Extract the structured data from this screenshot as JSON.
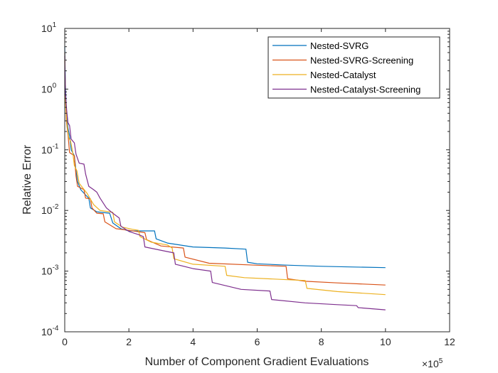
{
  "chart_data": {
    "type": "line",
    "title": "",
    "xlabel": "Number of Component Gradient Evaluations",
    "ylabel": "Relative Error",
    "x_multiplier": "×10",
    "x_multiplier_exp": "5",
    "xlim": [
      0,
      1200000
    ],
    "ylim": [
      0.0001,
      10
    ],
    "yscale": "log",
    "x_ticks": [
      {
        "value": 0,
        "label": "0"
      },
      {
        "value": 200000,
        "label": "2"
      },
      {
        "value": 400000,
        "label": "4"
      },
      {
        "value": 600000,
        "label": "6"
      },
      {
        "value": 800000,
        "label": "8"
      },
      {
        "value": 1000000,
        "label": "10"
      },
      {
        "value": 1200000,
        "label": "12"
      }
    ],
    "y_ticks": [
      {
        "value": 0.0001,
        "base": "10",
        "exp": "-4"
      },
      {
        "value": 0.001,
        "base": "10",
        "exp": "-3"
      },
      {
        "value": 0.01,
        "base": "10",
        "exp": "-2"
      },
      {
        "value": 0.1,
        "base": "10",
        "exp": "-1"
      },
      {
        "value": 1,
        "base": "10",
        "exp": "0"
      },
      {
        "value": 10,
        "base": "10",
        "exp": "1"
      }
    ],
    "grid": false,
    "legend_position": "top-right",
    "series": [
      {
        "name": "Nested-SVRG",
        "color": "#0072BD",
        "points": [
          [
            0,
            5.0
          ],
          [
            2000,
            1.2
          ],
          [
            5000,
            0.45
          ],
          [
            10000,
            0.23
          ],
          [
            15000,
            0.17
          ],
          [
            20000,
            0.1
          ],
          [
            30000,
            0.08
          ],
          [
            35000,
            0.045
          ],
          [
            40000,
            0.03
          ],
          [
            50000,
            0.022
          ],
          [
            65000,
            0.018
          ],
          [
            75000,
            0.016
          ],
          [
            80000,
            0.011
          ],
          [
            100000,
            0.0095
          ],
          [
            140000,
            0.009
          ],
          [
            150000,
            0.0062
          ],
          [
            175000,
            0.005
          ],
          [
            200000,
            0.0046
          ],
          [
            280000,
            0.0046
          ],
          [
            285000,
            0.0034
          ],
          [
            320000,
            0.0029
          ],
          [
            400000,
            0.0025
          ],
          [
            500000,
            0.0024
          ],
          [
            565000,
            0.0023
          ],
          [
            570000,
            0.0014
          ],
          [
            600000,
            0.00132
          ],
          [
            700000,
            0.00125
          ],
          [
            800000,
            0.0012
          ],
          [
            900000,
            0.00117
          ],
          [
            1000000,
            0.00114
          ]
        ]
      },
      {
        "name": "Nested-SVRG-Screening",
        "color": "#D95319",
        "points": [
          [
            0,
            4.0
          ],
          [
            2000,
            0.8
          ],
          [
            5000,
            0.3
          ],
          [
            10000,
            0.18
          ],
          [
            15000,
            0.09
          ],
          [
            30000,
            0.08
          ],
          [
            35000,
            0.037
          ],
          [
            40000,
            0.025
          ],
          [
            60000,
            0.022
          ],
          [
            65000,
            0.016
          ],
          [
            80000,
            0.0155
          ],
          [
            85000,
            0.011
          ],
          [
            100000,
            0.009
          ],
          [
            120000,
            0.0088
          ],
          [
            125000,
            0.0065
          ],
          [
            160000,
            0.005
          ],
          [
            200000,
            0.0047
          ],
          [
            250000,
            0.0043
          ],
          [
            255000,
            0.0033
          ],
          [
            300000,
            0.0026
          ],
          [
            370000,
            0.0024
          ],
          [
            375000,
            0.0017
          ],
          [
            450000,
            0.00135
          ],
          [
            600000,
            0.00125
          ],
          [
            690000,
            0.0012
          ],
          [
            695000,
            0.00075
          ],
          [
            750000,
            0.00068
          ],
          [
            850000,
            0.00064
          ],
          [
            1000000,
            0.00059
          ]
        ]
      },
      {
        "name": "Nested-Catalyst",
        "color": "#EDB120",
        "points": [
          [
            0,
            3.0
          ],
          [
            2000,
            0.7
          ],
          [
            6000,
            0.3
          ],
          [
            12000,
            0.16
          ],
          [
            18000,
            0.14
          ],
          [
            25000,
            0.09
          ],
          [
            30000,
            0.055
          ],
          [
            38000,
            0.045
          ],
          [
            45000,
            0.028
          ],
          [
            55000,
            0.024
          ],
          [
            70000,
            0.019
          ],
          [
            78000,
            0.016
          ],
          [
            90000,
            0.0125
          ],
          [
            110000,
            0.01
          ],
          [
            150000,
            0.0093
          ],
          [
            155000,
            0.0065
          ],
          [
            180000,
            0.0053
          ],
          [
            210000,
            0.0049
          ],
          [
            230000,
            0.0047
          ],
          [
            235000,
            0.0037
          ],
          [
            270000,
            0.003
          ],
          [
            320000,
            0.0027
          ],
          [
            335000,
            0.0024
          ],
          [
            340000,
            0.0016
          ],
          [
            400000,
            0.0013
          ],
          [
            500000,
            0.0012
          ],
          [
            505000,
            0.00085
          ],
          [
            560000,
            0.00078
          ],
          [
            700000,
            0.00072
          ],
          [
            750000,
            0.0007
          ],
          [
            755000,
            0.00052
          ],
          [
            850000,
            0.00046
          ],
          [
            1000000,
            0.00041
          ]
        ]
      },
      {
        "name": "Nested-Catalyst-Screening",
        "color": "#7E2F8E",
        "points": [
          [
            0,
            3.5
          ],
          [
            2000,
            0.9
          ],
          [
            6000,
            0.45
          ],
          [
            10000,
            0.28
          ],
          [
            15000,
            0.25
          ],
          [
            20000,
            0.15
          ],
          [
            30000,
            0.13
          ],
          [
            35000,
            0.085
          ],
          [
            45000,
            0.06
          ],
          [
            60000,
            0.058
          ],
          [
            65000,
            0.04
          ],
          [
            75000,
            0.025
          ],
          [
            90000,
            0.022
          ],
          [
            100000,
            0.02
          ],
          [
            110000,
            0.016
          ],
          [
            130000,
            0.011
          ],
          [
            150000,
            0.009
          ],
          [
            170000,
            0.0075
          ],
          [
            175000,
            0.0055
          ],
          [
            200000,
            0.0045
          ],
          [
            230000,
            0.004
          ],
          [
            245000,
            0.0037
          ],
          [
            250000,
            0.0025
          ],
          [
            320000,
            0.0021
          ],
          [
            340000,
            0.002
          ],
          [
            345000,
            0.0013
          ],
          [
            400000,
            0.0011
          ],
          [
            455000,
            0.001
          ],
          [
            460000,
            0.00065
          ],
          [
            550000,
            0.0005
          ],
          [
            640000,
            0.00047
          ],
          [
            645000,
            0.00034
          ],
          [
            750000,
            0.0003
          ],
          [
            850000,
            0.00028
          ],
          [
            910000,
            0.00027
          ],
          [
            915000,
            0.00025
          ],
          [
            1000000,
            0.00023
          ]
        ]
      }
    ]
  }
}
